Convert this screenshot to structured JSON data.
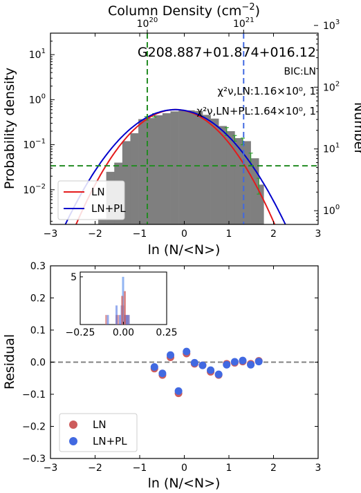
{
  "chart_data": [
    {
      "type": "histogram",
      "title": "G208.887+01.874+016.12",
      "top_axis_label": "Column Density (cm$^{-2}$)",
      "top_ticks": [
        {
          "text": "10",
          "sup": "20",
          "x": -0.83
        },
        {
          "text": "10",
          "sup": "21",
          "x": 1.33
        }
      ],
      "xlabel": "ln (N/<N>)",
      "ylabel": "Probability density",
      "ylabel_right": "Number",
      "xlim": [
        -3,
        3
      ],
      "ylim_log": [
        0.0017,
        30
      ],
      "ylim_right_log": [
        0.6,
        750
      ],
      "log_y": true,
      "x_ticks": [
        "−3",
        "−2",
        "−1",
        "0",
        "1",
        "2",
        "3"
      ],
      "y_ticks": [
        {
          "v": 10,
          "sup": "1"
        },
        {
          "v": 1,
          "sup": "0"
        },
        {
          "v": 0.1,
          "sup": "−1"
        },
        {
          "v": 0.01,
          "sup": "−2"
        }
      ],
      "y_ticks_right": [
        {
          "v": 1000,
          "sup": "3"
        },
        {
          "v": 100,
          "sup": "2"
        },
        {
          "v": 10,
          "sup": "1"
        },
        {
          "v": 1,
          "sup": "0"
        }
      ],
      "bic_text": "BIC:LN",
      "chi_ln_text": "χ²ν,LN:1.16×10⁰, 1",
      "chi_lnpl_text": "χ²ν,LN+PL:1.64×10⁰, 1",
      "bin_edges": [
        -1.93,
        -1.75,
        -1.57,
        -1.39,
        -1.21,
        -1.03,
        -0.85,
        -0.67,
        -0.49,
        -0.31,
        -0.13,
        0.05,
        0.23,
        0.41,
        0.59,
        0.77,
        0.95,
        1.13,
        1.31,
        1.49,
        1.67,
        1.78
      ],
      "hist_values": [
        0.0023,
        0.025,
        0.04,
        0.12,
        0.18,
        0.37,
        0.39,
        0.45,
        0.5,
        0.55,
        0.57,
        0.58,
        0.56,
        0.46,
        0.38,
        0.26,
        0.2,
        0.14,
        0.12,
        0.05,
        0.013
      ],
      "error_bars": [
        {
          "x": -0.85,
          "lo": 0.35,
          "hi": 0.42
        },
        {
          "x": -0.67,
          "lo": 0.41,
          "hi": 0.49
        },
        {
          "x": 0.95,
          "lo": 0.16,
          "hi": 0.24
        },
        {
          "x": 1.13,
          "lo": 0.12,
          "hi": 0.16
        },
        {
          "x": 1.31,
          "lo": 0.1,
          "hi": 0.14
        },
        {
          "x": 1.49,
          "lo": 0.035,
          "hi": 0.065
        },
        {
          "x": 1.67,
          "lo": 0.008,
          "hi": 0.018
        }
      ],
      "ln_fit": {
        "name": "LN",
        "color": "#e41a1c",
        "amplitude": 0.6,
        "mu": -0.2,
        "sigma": 0.65
      },
      "lnpl_fit": {
        "name": "LN+PL",
        "color": "#0000cc",
        "amplitude": 0.6,
        "mu": -0.2,
        "sigma": 0.72
      },
      "vlines": [
        {
          "x": -0.83,
          "color": "#228b22",
          "style": "dashed"
        },
        {
          "x": 1.33,
          "color": "#4169e1",
          "style": "dashed"
        }
      ],
      "hline": {
        "y": 0.034,
        "color": "#228b22",
        "style": "dashed"
      },
      "hist_color": "#7f7f7f",
      "legend": [
        {
          "label": "LN",
          "color": "#e41a1c"
        },
        {
          "label": "LN+PL",
          "color": "#0000cc"
        }
      ],
      "legend_position": "lower-left"
    },
    {
      "type": "scatter",
      "xlabel": "ln (N/<N>)",
      "ylabel": "Residual",
      "xlim": [
        -3,
        3
      ],
      "ylim": [
        -0.3,
        0.3
      ],
      "x_ticks": [
        "−3",
        "−2",
        "−1",
        "0",
        "1",
        "2",
        "3"
      ],
      "y_ticks": [
        "0.3",
        "0.2",
        "0.1",
        "0.0",
        "−0.1",
        "−0.2",
        "−0.3"
      ],
      "zero_line": true,
      "series": [
        {
          "name": "LN",
          "color": "#cd5c5c",
          "x": [
            -0.67,
            -0.49,
            -0.31,
            -0.13,
            0.05,
            0.23,
            0.41,
            0.59,
            0.77,
            0.95,
            1.13,
            1.31,
            1.49,
            1.67
          ],
          "y": [
            -0.02,
            -0.04,
            0.015,
            -0.097,
            0.027,
            -0.005,
            -0.01,
            -0.03,
            -0.04,
            -0.005,
            -0.002,
            0.002,
            -0.005,
            0.004
          ]
        },
        {
          "name": "LN+PL",
          "color": "#4169e1",
          "x": [
            -0.67,
            -0.49,
            -0.31,
            -0.13,
            0.05,
            0.23,
            0.41,
            0.59,
            0.77,
            0.95,
            1.13,
            1.31,
            1.49,
            1.67
          ],
          "y": [
            -0.015,
            -0.035,
            0.022,
            -0.09,
            0.033,
            -0.002,
            -0.01,
            -0.025,
            -0.038,
            -0.008,
            0.001,
            0.005,
            -0.008,
            0.002
          ]
        }
      ],
      "legend_position": "lower-left",
      "inset": {
        "type": "histogram",
        "xlim": [
          -0.25,
          0.25
        ],
        "ylim": [
          0,
          5.5
        ],
        "x_ticks": [
          "−0.25",
          "0.00",
          "0.25"
        ],
        "y_ticks": [
          "5"
        ],
        "ln_bars": [
          -0.1,
          -0.04,
          -0.03,
          -0.005,
          0.002,
          0.01,
          0.015,
          0.027
        ],
        "lnpl_bars": [
          -0.09,
          -0.04,
          -0.038,
          -0.025,
          -0.01,
          -0.008,
          0.005,
          0.022,
          0.033
        ]
      }
    }
  ]
}
